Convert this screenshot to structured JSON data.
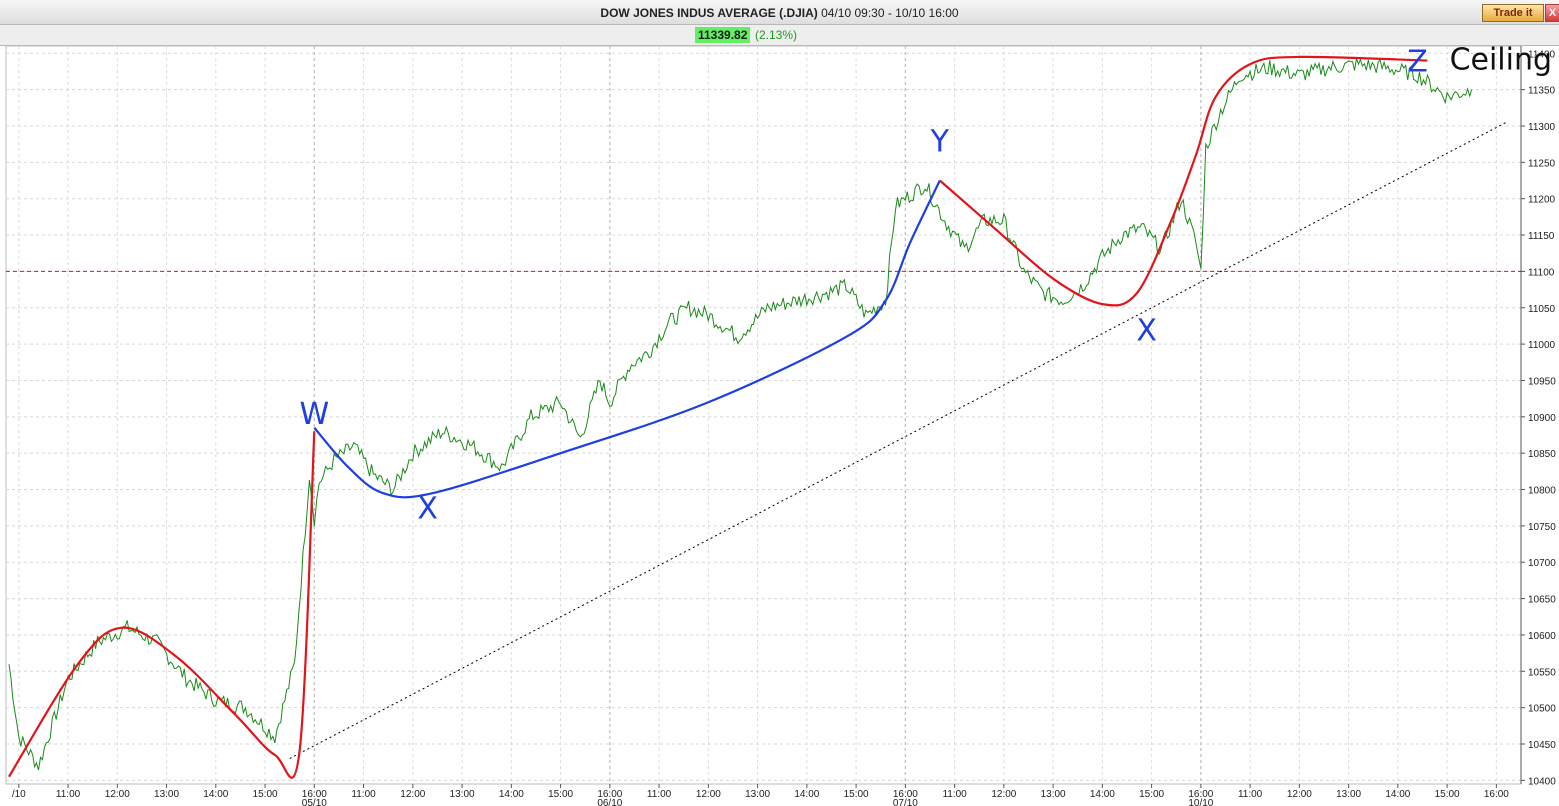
{
  "window": {
    "symbol": "DOW JONES INDUS AVERAGE (.DJIA)",
    "range": "04/10 09:30 - 10/10 16:00",
    "trade_button": "Trade it",
    "close_glyph": "X"
  },
  "quote": {
    "last": "11339.82",
    "change": "(2.13%)"
  },
  "colors": {
    "price_line": "#1a8a1a",
    "wave_red": "#e0161a",
    "wave_blue": "#1f3fe0",
    "support_line": "#000000",
    "level_line": "#e0161a",
    "label_blue": "#1f3fe0"
  },
  "chart_data": {
    "type": "line",
    "title": "",
    "ylim": [
      10395,
      11410
    ],
    "y_ticks": [
      10400,
      10450,
      10500,
      10550,
      10600,
      10650,
      10700,
      10750,
      10800,
      10850,
      10900,
      10950,
      11000,
      11050,
      11100,
      11150,
      11200,
      11250,
      11300,
      11350,
      11400
    ],
    "x_ticks": [
      {
        "t": 1.0,
        "label": "/10"
      },
      {
        "t": 1.5,
        "label": "11:00"
      },
      {
        "t": 2.0,
        "label": "12:00"
      },
      {
        "t": 2.5,
        "label": "13:00"
      },
      {
        "t": 3.0,
        "label": "14:00"
      },
      {
        "t": 3.5,
        "label": "15:00"
      },
      {
        "t": 4.0,
        "label": "16:00",
        "date": "05/10"
      },
      {
        "t": 4.5,
        "label": "11:00"
      },
      {
        "t": 5.0,
        "label": "12:00"
      },
      {
        "t": 5.5,
        "label": "13:00"
      },
      {
        "t": 6.0,
        "label": "14:00"
      },
      {
        "t": 6.5,
        "label": "15:00"
      },
      {
        "t": 7.0,
        "label": "16:00",
        "date": "06/10"
      },
      {
        "t": 7.5,
        "label": "11:00"
      },
      {
        "t": 8.0,
        "label": "12:00"
      },
      {
        "t": 8.5,
        "label": "13:00"
      },
      {
        "t": 9.0,
        "label": "14:00"
      },
      {
        "t": 9.5,
        "label": "15:00"
      },
      {
        "t": 10.0,
        "label": "16:00",
        "date": "07/10"
      },
      {
        "t": 10.5,
        "label": "11:00"
      },
      {
        "t": 11.0,
        "label": "12:00"
      },
      {
        "t": 11.5,
        "label": "13:00"
      },
      {
        "t": 12.0,
        "label": "14:00"
      },
      {
        "t": 12.5,
        "label": "15:00"
      },
      {
        "t": 13.0,
        "label": "16:00",
        "date": "10/10"
      },
      {
        "t": 13.5,
        "label": "11:00"
      },
      {
        "t": 14.0,
        "label": "12:00"
      },
      {
        "t": 14.5,
        "label": "13:00"
      },
      {
        "t": 15.0,
        "label": "14:00"
      },
      {
        "t": 15.5,
        "label": "15:00"
      },
      {
        "t": 16.0,
        "label": "16:00"
      }
    ],
    "x_tick_note": "t = position index along time axis; labels are as printed",
    "series": [
      {
        "values_t": [
          0.9,
          1.0,
          1.2,
          1.5,
          1.8,
          2.1,
          2.4,
          2.7,
          3.0,
          3.3,
          3.6,
          3.8,
          3.95,
          4.0,
          4.05,
          4.2,
          4.4,
          4.6,
          4.8,
          5.0,
          5.3,
          5.6,
          5.9,
          6.2,
          6.5,
          6.7,
          6.9,
          7.0,
          7.2,
          7.4,
          7.6,
          7.8,
          8.0,
          8.3,
          8.6,
          8.9,
          9.2,
          9.4,
          9.6,
          9.8,
          9.9,
          10.0,
          10.2,
          10.4,
          10.6,
          10.8,
          11.0,
          11.2,
          11.4,
          11.6,
          11.8,
          12.0,
          12.2,
          12.4,
          12.6,
          12.8,
          12.95,
          13.0,
          13.05,
          13.2,
          13.4,
          13.7,
          14.0,
          14.3,
          14.6,
          14.9,
          15.2,
          15.5,
          15.75
        ],
        "values": [
          10560,
          10460,
          10420,
          10540,
          10590,
          10610,
          10590,
          10540,
          10510,
          10500,
          10460,
          10560,
          10820,
          10760,
          10810,
          10840,
          10860,
          10820,
          10800,
          10850,
          10880,
          10860,
          10830,
          10900,
          10920,
          10870,
          10950,
          10920,
          10970,
          10990,
          11030,
          11050,
          11040,
          11010,
          11050,
          11060,
          11070,
          11080,
          11040,
          11060,
          11190,
          11200,
          11220,
          11170,
          11130,
          11170,
          11170,
          11100,
          11070,
          11060,
          11080,
          11120,
          11150,
          11160,
          11130,
          11200,
          11140,
          11100,
          11270,
          11320,
          11370,
          11380,
          11370,
          11380,
          11385,
          11380,
          11370,
          11340,
          11350
        ]
      }
    ],
    "annotations": {
      "wave_labels": [
        {
          "text": "W",
          "t": 4.0,
          "y": 10890
        },
        {
          "text": "X",
          "t": 5.15,
          "y": 10760
        },
        {
          "text": "Y",
          "t": 10.35,
          "y": 11265
        },
        {
          "text": "X",
          "t": 12.45,
          "y": 11005
        },
        {
          "text": "Z",
          "t": 15.2,
          "y": 11375
        }
      ],
      "ceiling_label": "Ceiling",
      "horizontal_level": 11100,
      "support_line": [
        {
          "t": 3.75,
          "y": 10430
        },
        {
          "t": 16.1,
          "y": 11305
        }
      ],
      "red_curves": [
        [
          [
            0.9,
            10405
          ],
          [
            1.6,
            10560
          ],
          [
            2.05,
            10610
          ],
          [
            2.6,
            10570
          ],
          [
            3.2,
            10490
          ],
          [
            3.6,
            10435
          ],
          [
            3.85,
            10440
          ],
          [
            4.0,
            10880
          ]
        ],
        [
          [
            10.35,
            11225
          ],
          [
            10.9,
            11160
          ],
          [
            11.5,
            11090
          ],
          [
            12.0,
            11055
          ],
          [
            12.35,
            11070
          ],
          [
            12.7,
            11170
          ],
          [
            12.95,
            11260
          ],
          [
            13.15,
            11340
          ],
          [
            13.5,
            11385
          ],
          [
            14.0,
            11395
          ],
          [
            15.3,
            11390
          ]
        ]
      ],
      "blue_curves": [
        [
          [
            4.0,
            10885
          ],
          [
            4.35,
            10830
          ],
          [
            4.7,
            10795
          ],
          [
            5.2,
            10795
          ],
          [
            6.5,
            10850
          ],
          [
            8.0,
            10920
          ],
          [
            9.4,
            11010
          ],
          [
            9.8,
            11060
          ],
          [
            10.05,
            11140
          ],
          [
            10.35,
            11225
          ]
        ]
      ]
    }
  }
}
